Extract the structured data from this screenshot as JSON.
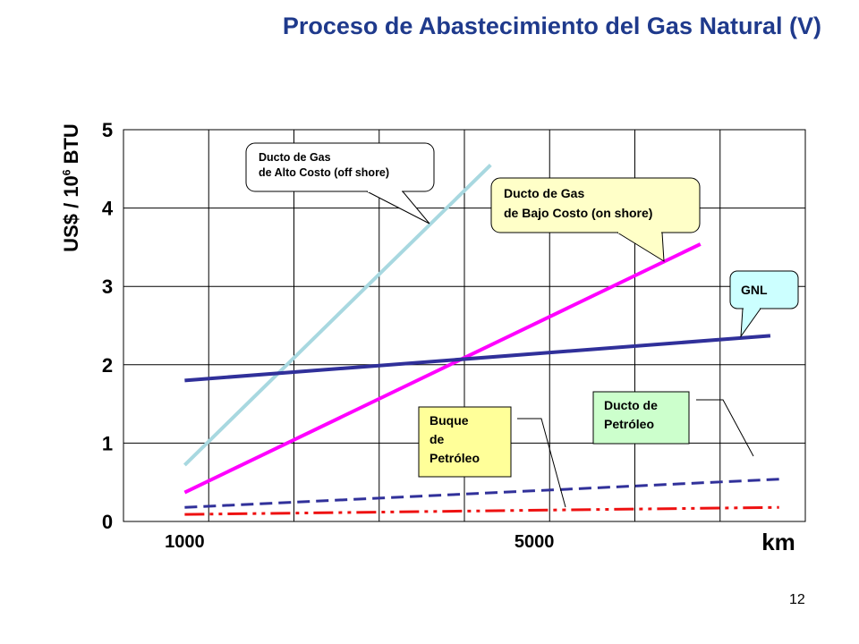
{
  "page": {
    "title": "Proceso de Abastecimiento del Gas Natural (V)",
    "number": "12"
  },
  "chart_data": {
    "type": "line",
    "title": "Proceso de Abastecimiento del Gas Natural (V)",
    "ylabel_main": "US$ / 10",
    "ylabel_exp": "6",
    "ylabel_unit": " BTU",
    "xlabel": "km",
    "ylim": [
      0,
      5
    ],
    "yticks": [
      "0",
      "1",
      "2",
      "3",
      "4",
      "5"
    ],
    "xticks": [
      {
        "label": "1000",
        "x": 1000
      },
      {
        "label": "5000",
        "x": 5000
      }
    ],
    "xlim": [
      300,
      8100
    ],
    "grid": true,
    "series": [
      {
        "name": "Ducto de Gas de Alto Costo (off shore)",
        "color": "#a8d8e0",
        "style": "solid",
        "x": [
          1000,
          4500
        ],
        "y": [
          0.72,
          4.55
        ]
      },
      {
        "name": "Ducto de Gas de Bajo Costo (on shore)",
        "color": "#ff00ff",
        "style": "solid",
        "x": [
          1000,
          6900
        ],
        "y": [
          0.37,
          3.54
        ]
      },
      {
        "name": "GNL",
        "color": "#30309a",
        "style": "solid",
        "x": [
          1000,
          7700
        ],
        "y": [
          1.8,
          2.37
        ]
      },
      {
        "name": "Ducto de Petróleo",
        "color": "#30309a",
        "style": "dashed",
        "x": [
          1000,
          7800
        ],
        "y": [
          0.18,
          0.54
        ]
      },
      {
        "name": "Buque de Petróleo",
        "color": "#ee1111",
        "style": "dashdotdot",
        "x": [
          1000,
          7800
        ],
        "y": [
          0.09,
          0.18
        ]
      }
    ],
    "callouts": [
      {
        "id": "alto",
        "lines": [
          "Ducto de Gas",
          "de Alto Costo (off shore)"
        ],
        "bg": "#ffffff",
        "color": "#a8d8e0"
      },
      {
        "id": "bajo",
        "lines": [
          "Ducto de Gas",
          "de Bajo Costo (on shore)"
        ],
        "bg": "#ffffc8",
        "color": "#ffffc8"
      },
      {
        "id": "gnl",
        "lines": [
          "GNL"
        ],
        "bg": "#ccffff",
        "color": "#ccffff"
      },
      {
        "id": "buque",
        "lines": [
          "Buque",
          "de",
          "Petróleo"
        ],
        "bg": "#ffff99",
        "color": "#ffff99"
      },
      {
        "id": "petroleo",
        "lines": [
          "Ducto de",
          "Petróleo"
        ],
        "bg": "#ccffcc",
        "color": "#ccffcc"
      }
    ]
  }
}
